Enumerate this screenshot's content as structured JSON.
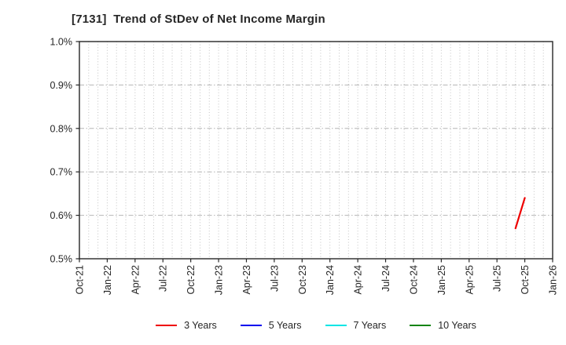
{
  "chart_data": {
    "type": "line",
    "title": "[7131]  Trend of StDev of Net Income Margin",
    "xlabel": "",
    "ylabel": "",
    "ylim": [
      0.5,
      1.0
    ],
    "yticks": [
      {
        "value": 0.5,
        "label": "0.5%"
      },
      {
        "value": 0.6,
        "label": "0.6%"
      },
      {
        "value": 0.7,
        "label": "0.7%"
      },
      {
        "value": 0.8,
        "label": "0.8%"
      },
      {
        "value": 0.9,
        "label": "0.9%"
      },
      {
        "value": 1.0,
        "label": "1.0%"
      }
    ],
    "x_start": "Oct-21",
    "x_end": "Jan-26",
    "xtick_labels": [
      "Oct-21",
      "Jan-22",
      "Apr-22",
      "Jul-22",
      "Oct-22",
      "Jan-23",
      "Apr-23",
      "Jul-23",
      "Oct-23",
      "Jan-24",
      "Apr-24",
      "Jul-24",
      "Oct-24",
      "Jan-25",
      "Apr-25",
      "Jul-25",
      "Oct-25",
      "Jan-26"
    ],
    "grid": {
      "vertical": "monthly-dotted",
      "horizontal": "major-dash-dot",
      "legend_position": "bottom"
    },
    "series": [
      {
        "name": "3 Years",
        "color": "#ee0000",
        "points": [
          {
            "x": "Sep-25",
            "y": 0.57
          },
          {
            "x": "Oct-25",
            "y": 0.64
          }
        ]
      },
      {
        "name": "5 Years",
        "color": "#0000ee",
        "points": []
      },
      {
        "name": "7 Years",
        "color": "#00e5e5",
        "points": []
      },
      {
        "name": "10 Years",
        "color": "#128412",
        "points": []
      }
    ]
  }
}
